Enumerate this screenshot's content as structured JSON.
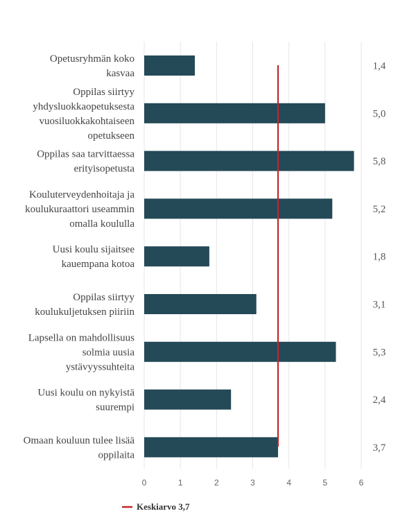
{
  "chart_data": {
    "type": "bar",
    "orientation": "horizontal",
    "categories": [
      "Opetusryhmän koko kasvaa",
      "Oppilas siirtyy yhdysluokkaopetuksesta vuosiluokkakohtaiseen opetukseen",
      "Oppilas saa tarvittaessa erityisopetusta",
      "Kouluterveydenhoitaja ja koulukuraattori useammin omalla koululla",
      "Uusi koulu sijaitsee kauempana kotoa",
      "Oppilas siirtyy koulukuljetuksen piiriin",
      "Lapsella on mahdollisuus solmia uusia ystävyyssuhteita",
      "Uusi koulu on nykyistä suurempi",
      "Omaan kouluun tulee lisää oppilaita"
    ],
    "category_lines": [
      [
        "Opetusryhmän koko",
        "kasvaa"
      ],
      [
        "Oppilas siirtyy",
        "yhdysluokkaopetuksesta",
        "vuosiluokkakohtaiseen",
        "opetukseen"
      ],
      [
        "Oppilas saa tarvittaessa",
        "erityisopetusta"
      ],
      [
        "Kouluterveydenhoitaja ja",
        "koulukuraattori useammin",
        "omalla koululla"
      ],
      [
        "Uusi koulu sijaitsee",
        "kauempana kotoa"
      ],
      [
        "Oppilas siirtyy",
        "koulukuljetuksen piiriin"
      ],
      [
        "Lapsella on mahdollisuus",
        "solmia uusia",
        "ystävyyssuhteita"
      ],
      [
        "Uusi koulu on nykyistä",
        "suurempi"
      ],
      [
        "Omaan kouluun tulee lisää",
        "oppilaita"
      ]
    ],
    "values": [
      1.4,
      5.0,
      5.8,
      5.2,
      1.8,
      3.1,
      5.3,
      2.4,
      3.7
    ],
    "value_labels": [
      "1,4",
      "5,0",
      "5,8",
      "5,2",
      "1,8",
      "3,1",
      "5,3",
      "2,4",
      "3,7"
    ],
    "xlim": [
      0,
      6
    ],
    "x_ticks": [
      "0",
      "1",
      "2",
      "3",
      "4",
      "5",
      "6"
    ],
    "grid": true,
    "bar_color": "#244957",
    "reference_line": {
      "value": 3.7,
      "label": "Keskiarvo 3,7",
      "color": "#c0262d"
    },
    "legend": {
      "position": "bottom-left",
      "entries": [
        "Keskiarvo 3,7"
      ]
    }
  }
}
